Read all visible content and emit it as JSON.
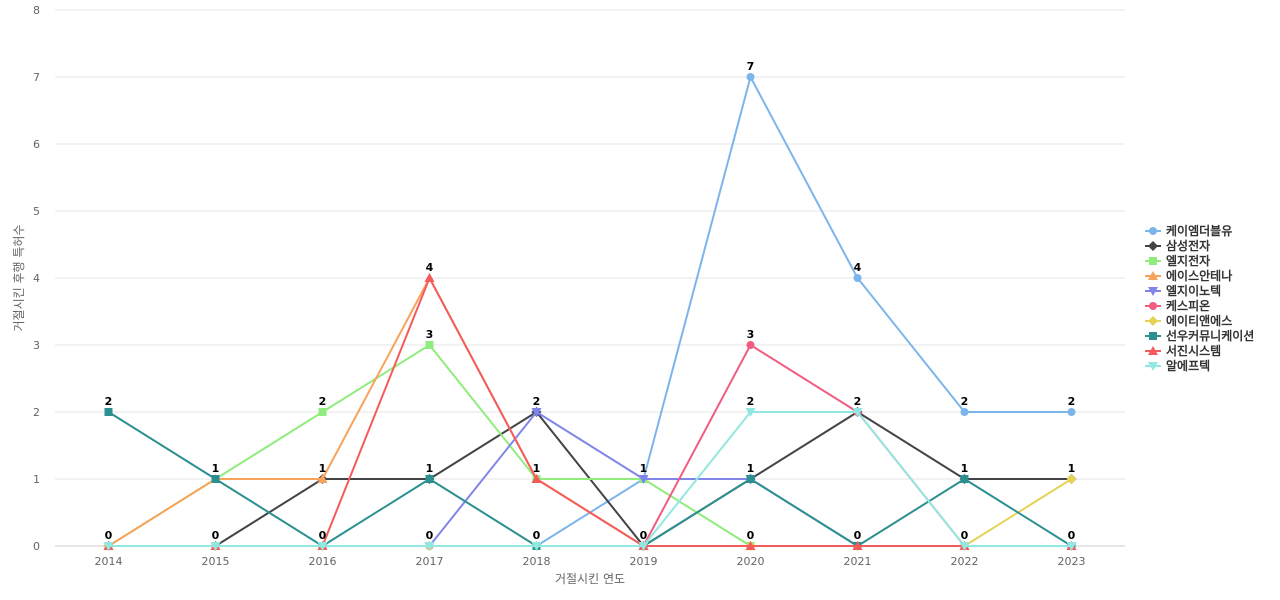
{
  "chart_data": {
    "type": "line",
    "title": "",
    "xlabel": "거절시킨 연도",
    "ylabel": "거절시킨 후행 특허수",
    "x": [
      "2014",
      "2015",
      "2016",
      "2017",
      "2018",
      "2019",
      "2020",
      "2021",
      "2022",
      "2023"
    ],
    "ylim": [
      0,
      8
    ],
    "yticks": [
      0,
      1,
      2,
      3,
      4,
      5,
      6,
      7,
      8
    ],
    "grid": true,
    "legend_position": "right",
    "series": [
      {
        "name": "케이엠더블유",
        "color": "#7cb5ec",
        "marker": "circle",
        "values": [
          0,
          0,
          0,
          0,
          0,
          1,
          7,
          4,
          2,
          2
        ]
      },
      {
        "name": "삼성전자",
        "color": "#434348",
        "marker": "diamond",
        "values": [
          0,
          0,
          1,
          1,
          2,
          0,
          1,
          2,
          1,
          1
        ]
      },
      {
        "name": "엘지전자",
        "color": "#90ed7d",
        "marker": "square",
        "values": [
          0,
          1,
          2,
          3,
          1,
          1,
          0,
          0,
          0,
          0
        ]
      },
      {
        "name": "에이스안테나",
        "color": "#f7a35c",
        "marker": "triangle",
        "values": [
          0,
          1,
          1,
          4,
          1,
          0,
          0,
          0,
          0,
          0
        ]
      },
      {
        "name": "엘지이노텍",
        "color": "#8085e9",
        "marker": "triangle-down",
        "values": [
          0,
          0,
          0,
          0,
          2,
          1,
          1,
          0,
          0,
          0
        ]
      },
      {
        "name": "케스피온",
        "color": "#f15c80",
        "marker": "circle",
        "values": [
          0,
          0,
          0,
          0,
          0,
          0,
          3,
          2,
          0,
          0
        ]
      },
      {
        "name": "에이티앤에스",
        "color": "#e4d354",
        "marker": "diamond",
        "values": [
          0,
          0,
          0,
          0,
          0,
          0,
          0,
          0,
          0,
          1
        ]
      },
      {
        "name": "선우커뮤니케이션",
        "color": "#2b908f",
        "marker": "square",
        "values": [
          2,
          1,
          0,
          1,
          0,
          0,
          1,
          0,
          1,
          0
        ]
      },
      {
        "name": "서진시스템",
        "color": "#f45b5b",
        "marker": "triangle",
        "values": [
          0,
          0,
          0,
          4,
          1,
          0,
          0,
          0,
          0,
          0
        ]
      },
      {
        "name": "알에프텍",
        "color": "#91e8e1",
        "marker": "triangle-down",
        "values": [
          0,
          0,
          0,
          0,
          0,
          0,
          2,
          2,
          0,
          0
        ]
      }
    ],
    "data_labels": [
      {
        "x": "2014",
        "value": 2,
        "text": "2"
      },
      {
        "x": "2014",
        "value": 0,
        "text": "0"
      },
      {
        "x": "2015",
        "value": 1,
        "text": "1"
      },
      {
        "x": "2015",
        "value": 0,
        "text": "0"
      },
      {
        "x": "2016",
        "value": 2,
        "text": "2"
      },
      {
        "x": "2016",
        "value": 1,
        "text": "1"
      },
      {
        "x": "2016",
        "value": 0,
        "text": "0"
      },
      {
        "x": "2017",
        "value": 4,
        "text": "4"
      },
      {
        "x": "2017",
        "value": 3,
        "text": "3"
      },
      {
        "x": "2017",
        "value": 1,
        "text": "1"
      },
      {
        "x": "2017",
        "value": 0,
        "text": "0"
      },
      {
        "x": "2018",
        "value": 2,
        "text": "2"
      },
      {
        "x": "2018",
        "value": 1,
        "text": "1"
      },
      {
        "x": "2018",
        "value": 0,
        "text": "0"
      },
      {
        "x": "2019",
        "value": 1,
        "text": "1"
      },
      {
        "x": "2019",
        "value": 0,
        "text": "0"
      },
      {
        "x": "2020",
        "value": 7,
        "text": "7"
      },
      {
        "x": "2020",
        "value": 3,
        "text": "3"
      },
      {
        "x": "2020",
        "value": 2,
        "text": "2"
      },
      {
        "x": "2020",
        "value": 1,
        "text": "1"
      },
      {
        "x": "2020",
        "value": 0,
        "text": "0"
      },
      {
        "x": "2021",
        "value": 4,
        "text": "4"
      },
      {
        "x": "2021",
        "value": 2,
        "text": "2"
      },
      {
        "x": "2021",
        "value": 0,
        "text": "0"
      },
      {
        "x": "2022",
        "value": 2,
        "text": "2"
      },
      {
        "x": "2022",
        "value": 1,
        "text": "1"
      },
      {
        "x": "2022",
        "value": 0,
        "text": "0"
      },
      {
        "x": "2023",
        "value": 2,
        "text": "2"
      },
      {
        "x": "2023",
        "value": 1,
        "text": "1"
      },
      {
        "x": "2023",
        "value": 0,
        "text": "0"
      }
    ]
  }
}
